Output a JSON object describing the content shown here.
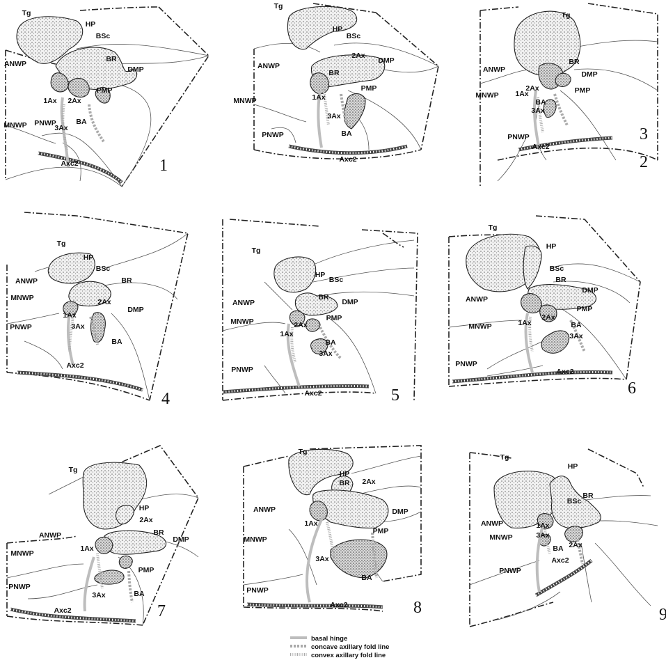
{
  "panels": [
    {
      "number": "1",
      "labels": [
        "Tg",
        "HP",
        "BSc",
        "ANWP",
        "BR",
        "DMP",
        "1Ax",
        "2Ax",
        "PMP",
        "MNWP",
        "PNWP",
        "3Ax",
        "BA",
        "Axc2"
      ]
    },
    {
      "number": "2",
      "labels": [
        "Tg",
        "HP",
        "BSc",
        "ANWP",
        "BR",
        "2Ax",
        "DMP",
        "PMP",
        "MNWP",
        "1Ax",
        "3Ax",
        "BA",
        "PNWP",
        "Axc2"
      ]
    },
    {
      "number": "3",
      "labels": [
        "Tg",
        "ANWP",
        "BR",
        "DMP",
        "2Ax",
        "MNWP",
        "1Ax",
        "PMP",
        "BA",
        "3Ax",
        "PNWP",
        "Axc2"
      ]
    },
    {
      "number": "4",
      "labels": [
        "Tg",
        "HP",
        "BSc",
        "ANWP",
        "BR",
        "MNWP",
        "2Ax",
        "DMP",
        "1Ax",
        "3Ax",
        "PNWP",
        "BA",
        "Axc2"
      ]
    },
    {
      "number": "5",
      "labels": [
        "Tg",
        "HP",
        "BSc",
        "ANWP",
        "BR",
        "DMP",
        "MNWP",
        "PMP",
        "2Ax",
        "1Ax",
        "BA",
        "3Ax",
        "PNWP",
        "Axc2"
      ]
    },
    {
      "number": "6",
      "labels": [
        "Tg",
        "HP",
        "BSc",
        "BR",
        "DMP",
        "ANWP",
        "PMP",
        "2Ax",
        "1Ax",
        "MNWP",
        "BA",
        "3Ax",
        "PNWP",
        "Axc2"
      ]
    },
    {
      "number": "7",
      "labels": [
        "Tg",
        "HP",
        "2Ax",
        "BR",
        "ANWP",
        "DMP",
        "MNWP",
        "1Ax",
        "PMP",
        "PNWP",
        "3Ax",
        "BA",
        "Axc2"
      ]
    },
    {
      "number": "8",
      "labels": [
        "Tg",
        "HP",
        "BR",
        "2Ax",
        "ANWP",
        "DMP",
        "MNWP",
        "1Ax",
        "PMP",
        "3Ax",
        "PNWP",
        "BA",
        "Axc2"
      ]
    },
    {
      "number": "9",
      "labels": [
        "Tg",
        "HP",
        "BSc",
        "BR",
        "ANWP",
        "1Ax",
        "MNWP",
        "3Ax",
        "2Ax",
        "BA",
        "PNWP",
        "Axc2"
      ]
    }
  ],
  "legend": [
    {
      "label": "basal hinge",
      "style": "solid"
    },
    {
      "label": "concave axillary fold line",
      "style": "dashed"
    },
    {
      "label": "convex axillary fold line",
      "style": "dotted"
    }
  ]
}
